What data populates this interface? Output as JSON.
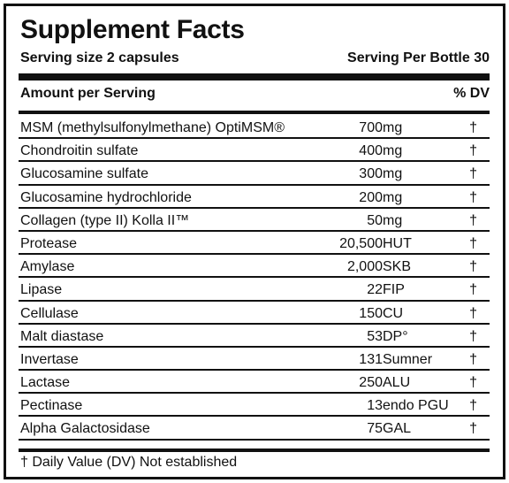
{
  "title": "Supplement Facts",
  "serving_size": "Serving size 2 capsules",
  "servings_per": "Serving Per Bottle 30",
  "amount_header": "Amount per Serving",
  "dv_header": "% DV",
  "rows": [
    {
      "name": "MSM (methylsulfonylmethane) OptiMSM®",
      "amount": "700",
      "unit": "mg",
      "dv": "†"
    },
    {
      "name": "Chondroitin sulfate",
      "amount": "400",
      "unit": "mg",
      "dv": "†"
    },
    {
      "name": "Glucosamine sulfate",
      "amount": "300",
      "unit": "mg",
      "dv": "†"
    },
    {
      "name": "Glucosamine hydrochloride",
      "amount": "200",
      "unit": "mg",
      "dv": "†"
    },
    {
      "name": "Collagen (type II) Kolla II™",
      "amount": "50",
      "unit": "mg",
      "dv": "†"
    },
    {
      "name": "Protease",
      "amount": "20,500",
      "unit": "HUT",
      "dv": "†"
    },
    {
      "name": "Amylase",
      "amount": "2,000",
      "unit": "SKB",
      "dv": "†"
    },
    {
      "name": "Lipase",
      "amount": "22",
      "unit": "FIP",
      "dv": "†"
    },
    {
      "name": "Cellulase",
      "amount": "150",
      "unit": "CU",
      "dv": "†"
    },
    {
      "name": "Malt diastase",
      "amount": "53",
      "unit": "DP°",
      "dv": "†"
    },
    {
      "name": "Invertase",
      "amount": "131",
      "unit": "Sumner",
      "dv": "†"
    },
    {
      "name": "Lactase",
      "amount": "250",
      "unit": "ALU",
      "dv": "†"
    },
    {
      "name": "Pectinase",
      "amount": "13",
      "unit": "endo PGU",
      "dv": "†"
    },
    {
      "name": "Alpha Galactosidase",
      "amount": "75",
      "unit": "GAL",
      "dv": "†"
    }
  ],
  "footnote": "† Daily Value (DV) Not established"
}
